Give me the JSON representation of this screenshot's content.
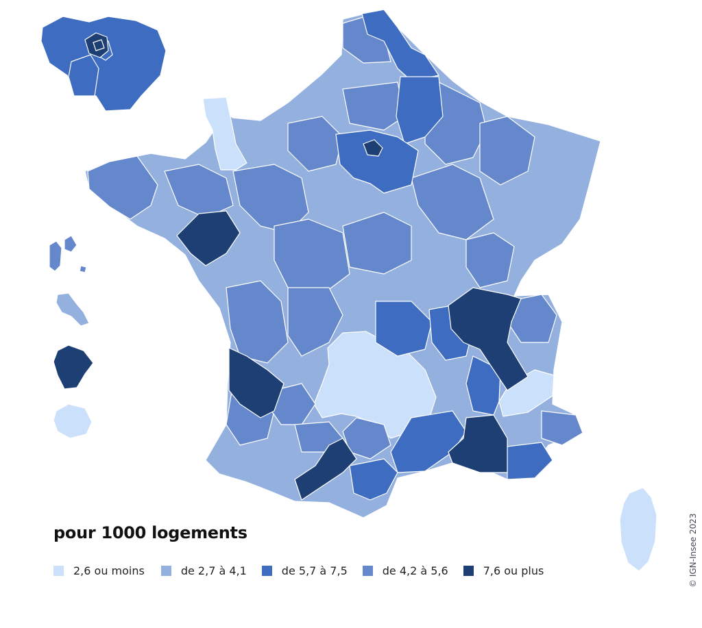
{
  "legend": {
    "title": "pour 1000 logements",
    "items": [
      {
        "label": "2,6 ou moins",
        "color": "#cbe0fb"
      },
      {
        "label": "de 2,7 à 4,1",
        "color": "#93b0de"
      },
      {
        "label": "de 5,7 à 7,5",
        "color": "#3d6cc1"
      },
      {
        "label": "de 4,2 à 5,6",
        "color": "#6488cb"
      },
      {
        "label": "7,6 ou plus",
        "color": "#1e3f74"
      }
    ]
  },
  "credit": "© IGN-Insee 2023",
  "colors": {
    "c1": "#cbe0fb",
    "c2": "#93b0de",
    "c3": "#6488cb",
    "c4": "#3d6cc1",
    "c5": "#1e3f74",
    "border": "#ffffff"
  }
}
